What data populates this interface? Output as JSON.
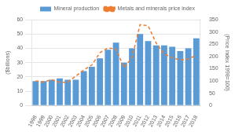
{
  "chart_data": {
    "type": "bar",
    "categories": [
      "1998",
      "1999",
      "2000",
      "2001",
      "2002",
      "2003",
      "2004",
      "2005",
      "2006",
      "2007",
      "2008",
      "2009",
      "2010",
      "2011",
      "2012",
      "2013",
      "2014",
      "2015",
      "2016",
      "2017",
      "2018"
    ],
    "series": [
      {
        "name": "Mineral production",
        "type": "bar",
        "color": "#5B9BD5",
        "values": [
          17,
          17,
          18,
          19,
          18,
          18,
          24,
          27,
          33,
          39,
          44,
          30,
          40,
          50,
          45,
          42,
          42,
          41,
          38,
          40,
          47
        ]
      },
      {
        "name": "Metals and minerals price index",
        "type": "line",
        "color": "#ED7D31",
        "line_style": "dashed",
        "axis": "y2",
        "values": [
          100,
          96,
          105,
          95,
          95,
          120,
          145,
          165,
          215,
          235,
          230,
          155,
          195,
          330,
          325,
          255,
          210,
          195,
          185,
          190,
          205
        ]
      }
    ],
    "ylabel": "($billions)",
    "y2label": "(Price index 1998=100)",
    "ylim": [
      0,
      60
    ],
    "yticks": [
      0,
      10,
      20,
      30,
      40,
      50,
      60
    ],
    "y2lim": [
      0,
      350
    ],
    "y2ticks": [
      0,
      50,
      100,
      150,
      200,
      250,
      300,
      350
    ],
    "grid": true,
    "legend": "top"
  }
}
